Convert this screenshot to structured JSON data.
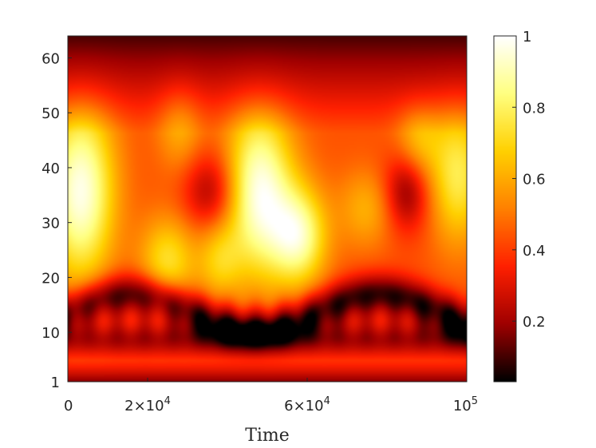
{
  "chart_data": {
    "type": "heatmap",
    "title": "",
    "xlabel": "Time",
    "ylabel": "",
    "xlim": [
      0,
      100000
    ],
    "ylim": [
      1,
      64
    ],
    "x_ticks": [
      {
        "value": 0,
        "mantissa": "0",
        "exponent": ""
      },
      {
        "value": 20000,
        "mantissa": "2×10",
        "exponent": "4"
      },
      {
        "value": 60000,
        "mantissa": "6×10",
        "exponent": "4"
      },
      {
        "value": 100000,
        "mantissa": "10",
        "exponent": "5"
      }
    ],
    "y_ticks": [
      {
        "value": 1,
        "label": "1"
      },
      {
        "value": 10,
        "label": "10"
      },
      {
        "value": 20,
        "label": "20"
      },
      {
        "value": 30,
        "label": "30"
      },
      {
        "value": 40,
        "label": "40"
      },
      {
        "value": 50,
        "label": "50"
      },
      {
        "value": 60,
        "label": "60"
      }
    ],
    "colormap": "hot",
    "colormap_stops": [
      "#000000",
      "#a00000",
      "#ff2000",
      "#ff8000",
      "#ffd000",
      "#ffff80",
      "#ffffff"
    ],
    "clim": [
      0.03,
      1
    ],
    "colorbar_ticks": [
      {
        "value": 0.2,
        "label": "0.2"
      },
      {
        "value": 0.4,
        "label": "0.4"
      },
      {
        "value": 0.6,
        "label": "0.6"
      },
      {
        "value": 0.8,
        "label": "0.8"
      },
      {
        "value": 1,
        "label": "1"
      }
    ],
    "grid": false,
    "description_of_field": "intensity over Time (x) and position 1-64 (y); bright yellow/white lobes near x≈0-0.05e5 (y≈30-45), x≈0.45e5-0.6e5 (y≈25-45), x≈0.95e5 (y≈35-45); dark band near y≈10-15 and near y=1 and y=64"
  }
}
